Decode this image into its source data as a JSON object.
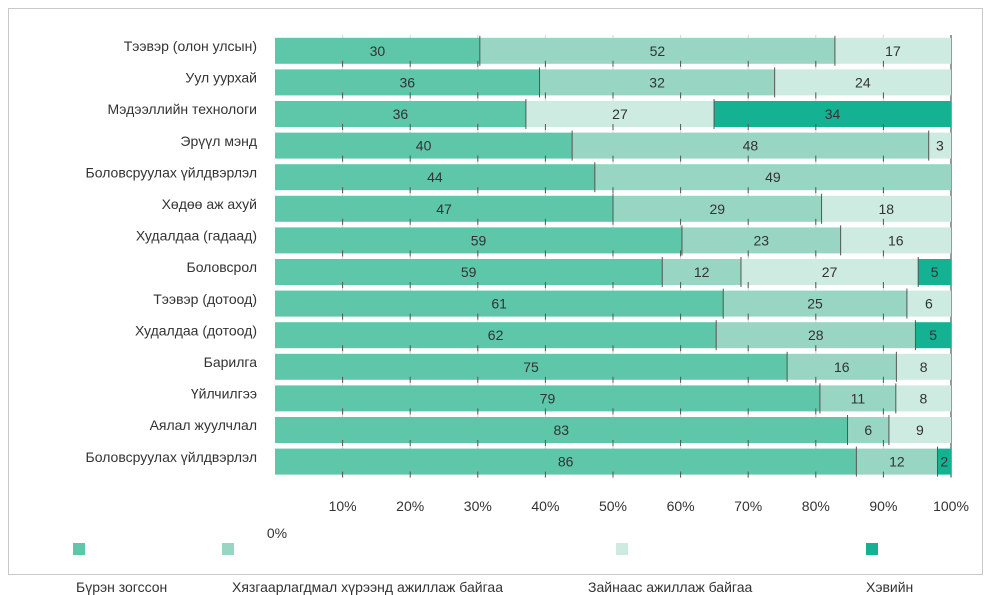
{
  "colors": {
    "full": "#5ec6a9",
    "limited": "#98d6c3",
    "normal_ok": "#cdebe0",
    "normal": "#14b293",
    "divider": "#555555"
  },
  "chart_data": {
    "type": "bar",
    "orientation": "horizontal",
    "stacked": true,
    "categories": [
      "Тээвэр (олон улсын)",
      "Уул уурхай",
      "Мэдээллийн технологи",
      "Эрүүл мэнд",
      "Боловсруулах үйлдвэрлэл",
      "Хөдөө аж ахуй",
      "Худалдаа (гадаад)",
      "Боловсрол",
      "Тээвэр (дотоод)",
      "Худалдаа (дотоод)",
      "Барилга",
      "Үйлчилгээ",
      "Аялал жуулчлал",
      "Боловсруулах үйлдвэрлэл"
    ],
    "series": [
      {
        "name": "Бүрэн зогссон",
        "values": [
          30,
          36,
          36,
          40,
          44,
          47,
          59,
          59,
          61,
          62,
          75,
          79,
          83,
          86
        ]
      },
      {
        "name": "Хязгаарлагдмал хүрээнд ажиллаж байгаа",
        "values": [
          52,
          32,
          0,
          48,
          49,
          29,
          23,
          12,
          25,
          28,
          16,
          11,
          6,
          12
        ]
      },
      {
        "name": "Зайнаас ажиллаж байгаа",
        "values": [
          17,
          24,
          27,
          3,
          0,
          18,
          16,
          27,
          6,
          0,
          8,
          8,
          9,
          0
        ]
      },
      {
        "name": "Хэвийн",
        "values": [
          0,
          0,
          34,
          0,
          0,
          0,
          0,
          5,
          0,
          5,
          0,
          0,
          0,
          2
        ]
      }
    ],
    "xaxis": {
      "ticks": [
        "0%",
        "10%",
        "20%",
        "30%",
        "40%",
        "50%",
        "60%",
        "70%",
        "80%",
        "90%",
        "100%"
      ],
      "range": [
        0,
        100
      ]
    },
    "grid": true,
    "legend_position": "bottom"
  }
}
